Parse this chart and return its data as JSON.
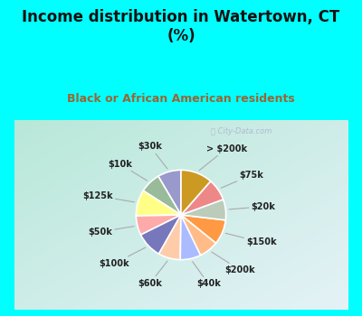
{
  "title": "Income distribution in Watertown, CT\n(%)",
  "subtitle": "Black or African American residents",
  "watermark": "City-Data.com",
  "labels": [
    "$30k",
    "$10k",
    "$125k",
    "$50k",
    "$100k",
    "$60k",
    "$40k",
    "$200k",
    "$150k",
    "$20k",
    "$75k",
    "> $200k"
  ],
  "values": [
    8.5,
    7.5,
    9.5,
    7.0,
    9.5,
    8.0,
    7.5,
    7.0,
    9.0,
    7.5,
    8.0,
    11.5
  ],
  "colors": [
    "#9999cc",
    "#99bb99",
    "#ffff88",
    "#ffaaaa",
    "#7777bb",
    "#ffccaa",
    "#aabbff",
    "#ffbb88",
    "#ff9944",
    "#bbccbb",
    "#ee8888",
    "#cc9922"
  ],
  "bg_cyan": "#00ffff",
  "bg_chart_tl": "#b8e8d8",
  "bg_chart_br": "#e8f4f8",
  "title_color": "#111111",
  "subtitle_color": "#996633",
  "label_color": "#222222",
  "line_color": "#aaaaaa",
  "start_angle": 90,
  "figsize": [
    4.0,
    3.5
  ],
  "dpi": 100,
  "title_fontsize": 12,
  "subtitle_fontsize": 9,
  "label_fontsize": 7
}
